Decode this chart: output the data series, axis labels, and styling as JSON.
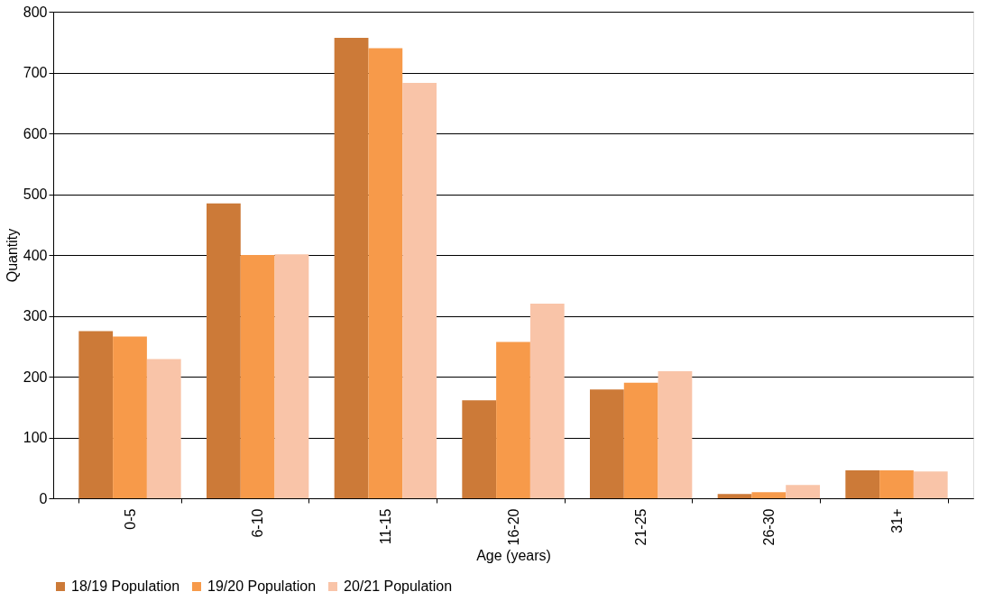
{
  "chart_data": {
    "type": "bar",
    "xlabel": "Age (years)",
    "ylabel": "Quantity",
    "categories": [
      "0-5",
      "6-10",
      "11-15",
      "16-20",
      "21-25",
      "26-30",
      "31+"
    ],
    "series": [
      {
        "name": "18/19 Population",
        "color": "#cc7a38",
        "values": [
          275,
          485,
          757,
          161,
          179,
          7,
          46
        ]
      },
      {
        "name": "19/20 Population",
        "color": "#f79a4a",
        "values": [
          266,
          400,
          740,
          257,
          190,
          10,
          46
        ]
      },
      {
        "name": "20/21 Population",
        "color": "#f9c4a8",
        "values": [
          229,
          401,
          683,
          320,
          209,
          22,
          44
        ]
      }
    ],
    "ylim": [
      0,
      800
    ],
    "yticks": [
      0,
      100,
      200,
      300,
      400,
      500,
      600,
      700,
      800
    ],
    "grid": "y",
    "legend": "bottom"
  }
}
